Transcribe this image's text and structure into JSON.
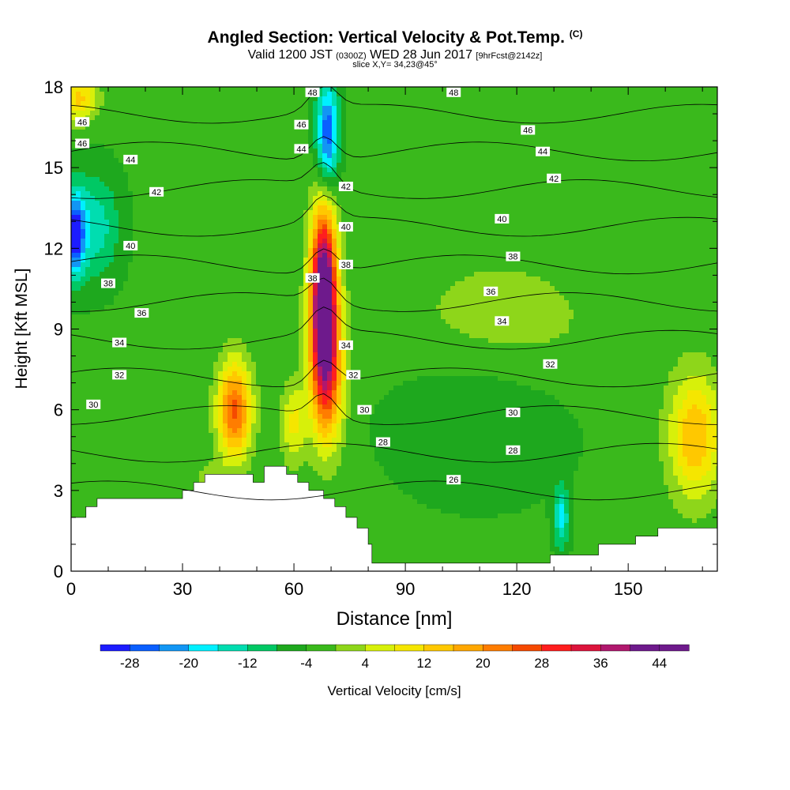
{
  "header": {
    "title": "Angled Section: Vertical Velocity & Pot.Temp.",
    "title_copyright": "(C)",
    "valid_prefix": "Valid 1200 JST",
    "valid_utc": "(0300Z)",
    "valid_date": "WED 28 Jun 2017",
    "forecast": "[9hrFcst@2142z]",
    "slice": "slice X,Y= 34,23@45°"
  },
  "chart_data": {
    "type": "heatmap",
    "title": "Angled Section: Vertical Velocity & Pot.Temp.",
    "xlabel": "Distance [nm]",
    "ylabel": "Height [Kft MSL]",
    "xlim": [
      0,
      174
    ],
    "ylim": [
      0,
      18
    ],
    "x_ticks": [
      0,
      30,
      60,
      90,
      120,
      150
    ],
    "y_ticks": [
      0,
      3,
      6,
      9,
      12,
      15,
      18
    ],
    "colorbar": {
      "label": "Vertical Velocity [cm/s]",
      "levels": [
        -32,
        -28,
        -24,
        -20,
        -16,
        -12,
        -8,
        -4,
        0,
        4,
        8,
        12,
        16,
        20,
        24,
        28,
        32,
        36,
        40,
        44,
        48
      ],
      "tick_labels": [
        "-28",
        "-20",
        "-12",
        "-4",
        "4",
        "12",
        "20",
        "28",
        "36",
        "44"
      ],
      "colors": [
        "#1c1cff",
        "#0a5fff",
        "#1296f4",
        "#00f0ff",
        "#00ddb0",
        "#00c864",
        "#1ea81e",
        "#3ab91c",
        "#8ed61a",
        "#d7f00a",
        "#f5e600",
        "#ffc800",
        "#ffa700",
        "#ff7d00",
        "#f54a00",
        "#ff1e1e",
        "#dc143c",
        "#b0186e",
        "#6e1a8c",
        "#6e1a8c"
      ]
    },
    "base_value": -3,
    "velocity_features": [
      {
        "x": 68,
        "y": 10.3,
        "rx": 3.5,
        "ry": 3.2,
        "value": 54
      },
      {
        "x": 69,
        "y": 7.2,
        "rx": 4.5,
        "ry": 2.6,
        "value": 24
      },
      {
        "x": 44,
        "y": 6.0,
        "rx": 4.5,
        "ry": 1.8,
        "value": 28
      },
      {
        "x": 168,
        "y": 5.0,
        "rx": 7.0,
        "ry": 2.3,
        "value": 19
      },
      {
        "x": 60,
        "y": 5.5,
        "rx": 3.5,
        "ry": 1.5,
        "value": 12
      },
      {
        "x": 38,
        "y": 2.8,
        "rx": 4.0,
        "ry": 1.0,
        "value": 10
      },
      {
        "x": 115,
        "y": 9.0,
        "rx": 28.0,
        "ry": 2.8,
        "value": 6
      },
      {
        "x": 2,
        "y": 17.6,
        "rx": 5.0,
        "ry": 0.9,
        "value": 16
      },
      {
        "x": 69,
        "y": 16.2,
        "rx": 3.0,
        "ry": 2.0,
        "value": -25
      },
      {
        "x": 1,
        "y": 12.5,
        "rx": 2.5,
        "ry": 1.5,
        "value": -24
      },
      {
        "x": 6,
        "y": 12.8,
        "rx": 7.0,
        "ry": 2.0,
        "value": -12
      },
      {
        "x": 132,
        "y": 2.0,
        "rx": 2.0,
        "ry": 1.2,
        "value": -14
      },
      {
        "x": 110,
        "y": 6.0,
        "rx": 24.0,
        "ry": 3.0,
        "value": -6
      }
    ],
    "terrain": [
      [
        0,
        2.0
      ],
      [
        4,
        2.0
      ],
      [
        4,
        2.4
      ],
      [
        7,
        2.4
      ],
      [
        7,
        2.7
      ],
      [
        30,
        2.7
      ],
      [
        30,
        3.0
      ],
      [
        33,
        3.0
      ],
      [
        33,
        3.3
      ],
      [
        36,
        3.3
      ],
      [
        36,
        3.6
      ],
      [
        49,
        3.6
      ],
      [
        49,
        3.3
      ],
      [
        52,
        3.3
      ],
      [
        52,
        3.9
      ],
      [
        58,
        3.9
      ],
      [
        58,
        3.6
      ],
      [
        61,
        3.6
      ],
      [
        61,
        3.3
      ],
      [
        64,
        3.3
      ],
      [
        64,
        3.0
      ],
      [
        68,
        3.0
      ],
      [
        68,
        2.7
      ],
      [
        71,
        2.7
      ],
      [
        71,
        2.4
      ],
      [
        74,
        2.4
      ],
      [
        74,
        2.0
      ],
      [
        77,
        2.0
      ],
      [
        77,
        1.6
      ],
      [
        80,
        1.6
      ],
      [
        80,
        1.0
      ],
      [
        81,
        1.0
      ],
      [
        81,
        0.3
      ],
      [
        129,
        0.3
      ],
      [
        129,
        0.6
      ],
      [
        142,
        0.6
      ],
      [
        142,
        1.0
      ],
      [
        152,
        1.0
      ],
      [
        152,
        1.3
      ],
      [
        158,
        1.3
      ],
      [
        158,
        1.6
      ],
      [
        174,
        1.6
      ]
    ],
    "theta_levels": [
      26,
      28,
      30,
      32,
      34,
      36,
      38,
      40,
      42,
      44,
      46,
      48
    ],
    "theta_contour_labels": [
      {
        "text": "48",
        "x": 65,
        "y": 17.8
      },
      {
        "text": "48",
        "x": 103,
        "y": 17.8
      },
      {
        "text": "46",
        "x": 3,
        "y": 16.7
      },
      {
        "text": "46",
        "x": 62,
        "y": 16.6
      },
      {
        "text": "46",
        "x": 123,
        "y": 16.4
      },
      {
        "text": "46",
        "x": 3,
        "y": 15.9
      },
      {
        "text": "44",
        "x": 16,
        "y": 15.3
      },
      {
        "text": "44",
        "x": 62,
        "y": 15.7
      },
      {
        "text": "44",
        "x": 127,
        "y": 15.6
      },
      {
        "text": "42",
        "x": 23,
        "y": 14.1
      },
      {
        "text": "42",
        "x": 74,
        "y": 14.3
      },
      {
        "text": "42",
        "x": 130,
        "y": 14.6
      },
      {
        "text": "40",
        "x": 74,
        "y": 12.8
      },
      {
        "text": "40",
        "x": 116,
        "y": 13.1
      },
      {
        "text": "40",
        "x": 16,
        "y": 12.1
      },
      {
        "text": "38",
        "x": 74,
        "y": 11.4
      },
      {
        "text": "38",
        "x": 119,
        "y": 11.7
      },
      {
        "text": "38",
        "x": 10,
        "y": 10.7
      },
      {
        "text": "38",
        "x": 65,
        "y": 10.9
      },
      {
        "text": "36",
        "x": 113,
        "y": 10.4
      },
      {
        "text": "36",
        "x": 19,
        "y": 9.6
      },
      {
        "text": "34",
        "x": 116,
        "y": 9.3
      },
      {
        "text": "34",
        "x": 13,
        "y": 8.5
      },
      {
        "text": "34",
        "x": 74,
        "y": 8.4
      },
      {
        "text": "32",
        "x": 129,
        "y": 7.7
      },
      {
        "text": "32",
        "x": 13,
        "y": 7.3
      },
      {
        "text": "32",
        "x": 76,
        "y": 7.3
      },
      {
        "text": "30",
        "x": 6,
        "y": 6.2
      },
      {
        "text": "30",
        "x": 79,
        "y": 6.0
      },
      {
        "text": "30",
        "x": 119,
        "y": 5.9
      },
      {
        "text": "28",
        "x": 84,
        "y": 4.8
      },
      {
        "text": "28",
        "x": 119,
        "y": 4.5
      },
      {
        "text": "26",
        "x": 103,
        "y": 3.4
      }
    ]
  }
}
